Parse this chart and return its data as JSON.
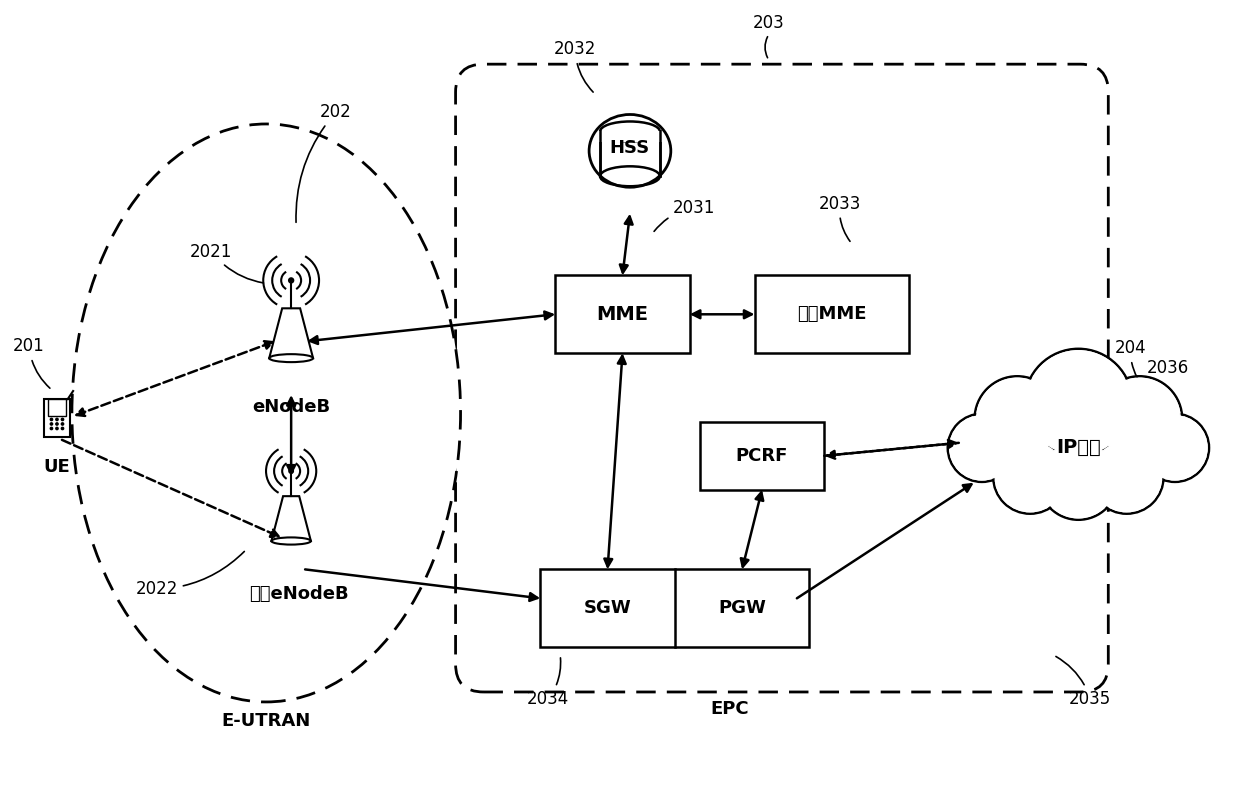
{
  "bg_color": "#ffffff",
  "fig_width": 12.4,
  "fig_height": 7.98,
  "dpi": 100,
  "labels": {
    "UE": "UE",
    "eNodeB": "eNodeB",
    "other_eNodeB": "其它eNodeB",
    "E-UTRAN": "E-UTRAN",
    "HSS": "HSS",
    "MME": "MME",
    "other_MME": "其它MME",
    "PCRF": "PCRF",
    "SGW": "SGW",
    "PGW": "PGW",
    "EPC": "EPC",
    "IP": "IP业务",
    "201": "201",
    "202": "202",
    "203": "203",
    "204": "204",
    "2021": "2021",
    "2022": "2022",
    "2031": "2031",
    "2032": "2032",
    "2033": "2033",
    "2034": "2034",
    "2035": "2035",
    "2036": "2036"
  }
}
